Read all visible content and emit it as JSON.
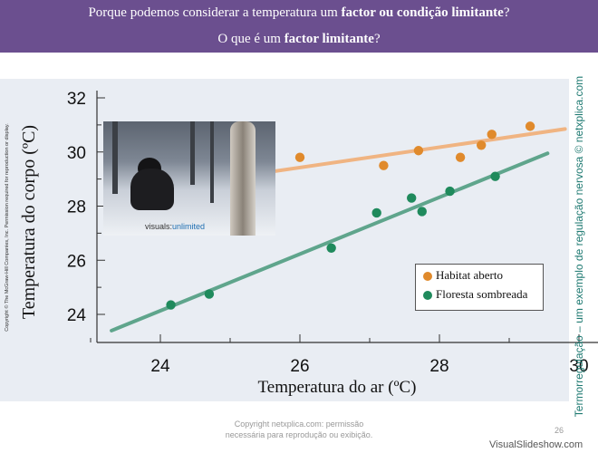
{
  "header": {
    "line1_pre": "Porque podemos considerar a temperatura um ",
    "line1_bold": "factor ou condição limitante",
    "line1_post": "?",
    "line2_pre": "O que é um ",
    "line2_bold": "factor limitante",
    "line2_post": "?"
  },
  "side_copyright": "Copyright © The McGraw-Hill Companies, Inc. Permission required for reproduction or display.",
  "right_vertical_text": "Termorregulação – um exemplo de regulação nervosa © netxplica.com",
  "footer": {
    "copy_line1": "Copyright netxplica.com: permissão",
    "copy_line2": "necessária para reprodução ou exibição.",
    "slide_number": "26",
    "watermark": "VisualSlideshow.com"
  },
  "photo": {
    "caption_prefix": "visuals:",
    "caption_suffix": "unlimited"
  },
  "colors": {
    "open": "#e08a2c",
    "forest": "#1f8a5c",
    "open_line": "#f0b482",
    "forest_line": "#5fa58c",
    "header_bg": "#6b4f8f"
  },
  "chart_data": {
    "type": "scatter",
    "xlabel": "Temperatura do ar (ºC)",
    "ylabel": "Temperatura do corpo (ºC)",
    "xlim": [
      23,
      31
    ],
    "ylim": [
      23,
      32
    ],
    "xticks": [
      "24",
      "26",
      "28",
      "30"
    ],
    "yticks": [
      "24",
      "26",
      "28",
      "30",
      "32"
    ],
    "legend": "bottom-right",
    "series": [
      {
        "name": "Habitat aberto",
        "points": [
          [
            26.0,
            29.8
          ],
          [
            27.2,
            29.5
          ],
          [
            27.7,
            30.05
          ],
          [
            28.3,
            29.8
          ],
          [
            28.6,
            30.25
          ],
          [
            28.75,
            30.65
          ],
          [
            29.3,
            30.95
          ]
        ],
        "trend": [
          [
            24.6,
            28.9
          ],
          [
            29.8,
            30.85
          ]
        ]
      },
      {
        "name": "Floresta sombreada",
        "points": [
          [
            24.15,
            24.35
          ],
          [
            24.7,
            24.75
          ],
          [
            26.45,
            26.45
          ],
          [
            27.1,
            27.75
          ],
          [
            27.6,
            28.3
          ],
          [
            27.75,
            27.8
          ],
          [
            28.15,
            28.55
          ],
          [
            28.8,
            29.1
          ]
        ],
        "trend": [
          [
            23.3,
            23.4
          ],
          [
            29.55,
            29.95
          ]
        ]
      }
    ]
  }
}
